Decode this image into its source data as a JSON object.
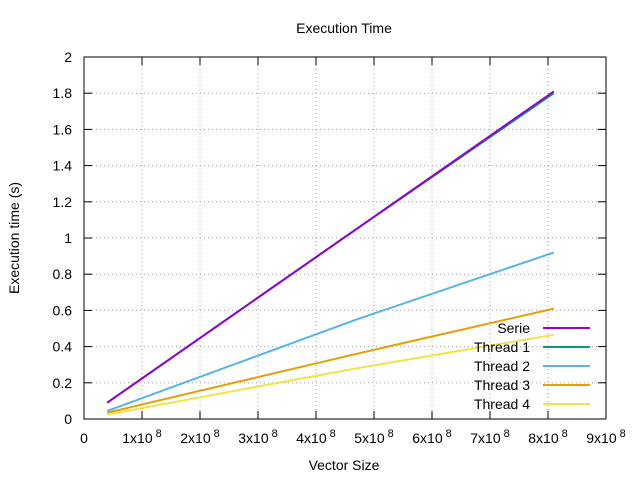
{
  "chart_data": {
    "type": "line",
    "title": "Execution Time",
    "xlabel": "Vector Size",
    "ylabel": "Execution time (s)",
    "xlim": [
      0,
      900000000
    ],
    "ylim": [
      0,
      2
    ],
    "grid": true,
    "legend_position": "bottom-right",
    "x_ticks": [
      {
        "value": 0,
        "label": "0",
        "exp": ""
      },
      {
        "value": 100000000,
        "label": "1x10",
        "exp": "8"
      },
      {
        "value": 200000000,
        "label": "2x10",
        "exp": "8"
      },
      {
        "value": 300000000,
        "label": "3x10",
        "exp": "8"
      },
      {
        "value": 400000000,
        "label": "4x10",
        "exp": "8"
      },
      {
        "value": 500000000,
        "label": "5x10",
        "exp": "8"
      },
      {
        "value": 600000000,
        "label": "6x10",
        "exp": "8"
      },
      {
        "value": 700000000,
        "label": "7x10",
        "exp": "8"
      },
      {
        "value": 800000000,
        "label": "8x10",
        "exp": "8"
      },
      {
        "value": 900000000,
        "label": "9x10",
        "exp": "8"
      }
    ],
    "y_ticks": [
      {
        "value": 0,
        "label": "0"
      },
      {
        "value": 0.2,
        "label": "0.2"
      },
      {
        "value": 0.4,
        "label": "0.4"
      },
      {
        "value": 0.6,
        "label": "0.6"
      },
      {
        "value": 0.8,
        "label": "0.8"
      },
      {
        "value": 1,
        "label": "1"
      },
      {
        "value": 1.2,
        "label": "1.2"
      },
      {
        "value": 1.4,
        "label": "1.4"
      },
      {
        "value": 1.6,
        "label": "1.6"
      },
      {
        "value": 1.8,
        "label": "1.8"
      },
      {
        "value": 2,
        "label": "2"
      }
    ],
    "series": [
      {
        "name": "Serie",
        "color": "#9400d3",
        "x": [
          40000000,
          470000000,
          810000000
        ],
        "y": [
          0.09,
          1.05,
          1.81
        ]
      },
      {
        "name": "Thread 1",
        "color": "#009e73",
        "x": [
          40000000,
          470000000,
          810000000
        ],
        "y": [
          0.09,
          1.05,
          1.8
        ]
      },
      {
        "name": "Thread 2",
        "color": "#56b4e9",
        "x": [
          40000000,
          470000000,
          810000000
        ],
        "y": [
          0.045,
          0.55,
          0.92
        ]
      },
      {
        "name": "Thread 3",
        "color": "#e69f00",
        "x": [
          40000000,
          470000000,
          810000000
        ],
        "y": [
          0.035,
          0.36,
          0.61
        ]
      },
      {
        "name": "Thread 4",
        "color": "#f0e442",
        "x": [
          40000000,
          470000000,
          810000000
        ],
        "y": [
          0.025,
          0.28,
          0.465
        ]
      }
    ]
  }
}
